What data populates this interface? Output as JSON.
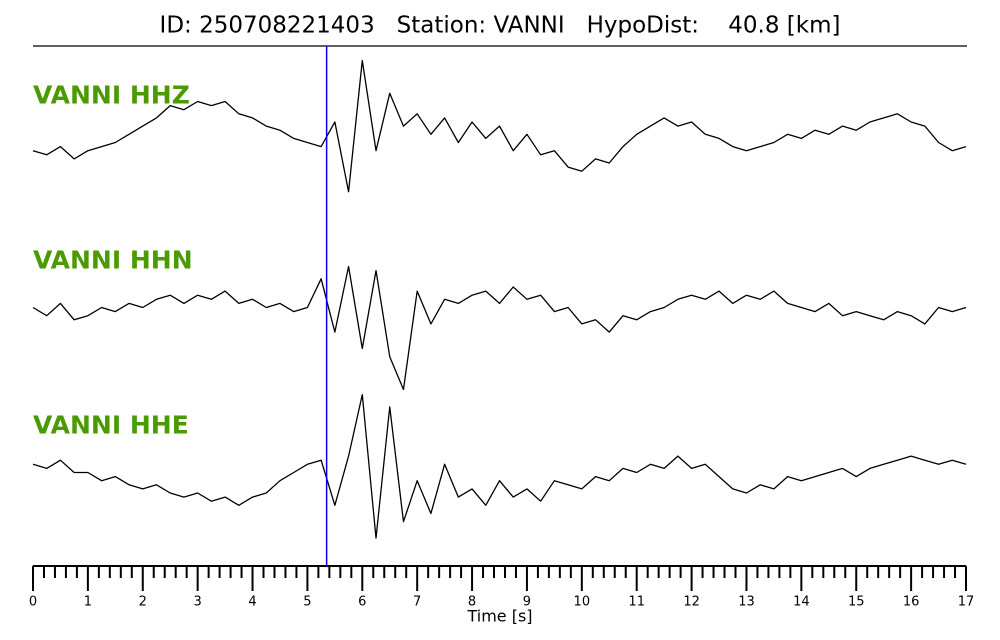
{
  "chart_data": {
    "type": "seismogram",
    "title": "ID: 250708221403   Station: VANNI   HypoDist:    40.8 [km]",
    "xlabel": "Time [s]",
    "xlim": [
      0,
      17
    ],
    "xticks": [
      0,
      1,
      2,
      3,
      4,
      5,
      6,
      7,
      8,
      9,
      10,
      11,
      12,
      13,
      14,
      15,
      16,
      17
    ],
    "xminorticks": [
      0.2,
      0.4,
      0.6,
      0.8,
      1.2,
      1.4,
      1.6,
      1.8,
      2.2,
      2.4,
      2.6,
      2.8,
      3.2,
      3.4,
      3.6,
      3.8,
      4.2,
      4.4,
      4.6,
      4.8,
      5.2,
      5.4,
      5.6,
      5.8,
      6.2,
      6.4,
      6.6,
      6.8,
      7.2,
      7.4,
      7.6,
      7.8,
      8.2,
      8.4,
      8.6,
      8.8,
      9.2,
      9.4,
      9.6,
      9.8,
      10.2,
      10.4,
      10.6,
      10.8,
      11.2,
      11.4,
      11.6,
      11.8,
      12.2,
      12.4,
      12.6,
      12.8,
      13.2,
      13.4,
      13.6,
      13.8,
      14.2,
      14.4,
      14.6,
      14.8,
      15.2,
      15.4,
      15.6,
      15.8,
      16.2,
      16.4,
      16.6,
      16.8
    ],
    "ylim": [
      -1,
      1
    ],
    "pick": {
      "x": 5.35,
      "color": "#0000ff"
    },
    "x": [
      0,
      0.25,
      0.5,
      0.75,
      1,
      1.25,
      1.5,
      1.75,
      2,
      2.25,
      2.5,
      2.75,
      3,
      3.25,
      3.5,
      3.75,
      4,
      4.25,
      4.5,
      4.75,
      5,
      5.25,
      5.5,
      5.75,
      6,
      6.25,
      6.5,
      6.75,
      7,
      7.25,
      7.5,
      7.75,
      8,
      8.25,
      8.5,
      8.75,
      9,
      9.25,
      9.5,
      9.75,
      10,
      10.25,
      10.5,
      10.75,
      11,
      11.25,
      11.5,
      11.75,
      12,
      12.25,
      12.5,
      12.75,
      13,
      13.25,
      13.5,
      13.75,
      14,
      14.25,
      14.5,
      14.75,
      15,
      15.25,
      15.5,
      15.75,
      16,
      16.25,
      16.5,
      16.75,
      17
    ],
    "series": [
      {
        "name": "VANNI HHZ",
        "color": "#000000",
        "label_color": "#4a9a00",
        "values": [
          -0.1,
          -0.15,
          -0.05,
          -0.2,
          -0.1,
          -0.05,
          0.0,
          0.1,
          0.2,
          0.3,
          0.45,
          0.4,
          0.5,
          0.45,
          0.5,
          0.35,
          0.3,
          0.2,
          0.15,
          0.05,
          0.0,
          -0.05,
          0.25,
          -0.6,
          1.0,
          -0.1,
          0.6,
          0.2,
          0.35,
          0.1,
          0.3,
          0.0,
          0.25,
          0.05,
          0.2,
          -0.1,
          0.1,
          -0.15,
          -0.1,
          -0.3,
          -0.35,
          -0.2,
          -0.25,
          -0.05,
          0.1,
          0.2,
          0.3,
          0.2,
          0.25,
          0.1,
          0.05,
          -0.05,
          -0.1,
          -0.05,
          0.0,
          0.1,
          0.05,
          0.15,
          0.1,
          0.2,
          0.15,
          0.25,
          0.3,
          0.35,
          0.25,
          0.2,
          0.0,
          -0.1,
          -0.05
        ]
      },
      {
        "name": "VANNI HHN",
        "color": "#000000",
        "label_color": "#4a9a00",
        "values": [
          0.0,
          -0.1,
          0.05,
          -0.15,
          -0.1,
          0.0,
          -0.05,
          0.05,
          0.0,
          0.1,
          0.15,
          0.05,
          0.15,
          0.1,
          0.2,
          0.05,
          0.1,
          0.0,
          0.05,
          -0.05,
          0.0,
          0.35,
          -0.3,
          0.5,
          -0.5,
          0.45,
          -0.6,
          -1.0,
          0.2,
          -0.2,
          0.1,
          0.05,
          0.15,
          0.2,
          0.05,
          0.25,
          0.1,
          0.15,
          -0.05,
          0.0,
          -0.2,
          -0.15,
          -0.3,
          -0.1,
          -0.15,
          -0.05,
          0.0,
          0.1,
          0.15,
          0.1,
          0.2,
          0.05,
          0.15,
          0.1,
          0.2,
          0.05,
          0.0,
          -0.05,
          0.05,
          -0.1,
          -0.05,
          -0.1,
          -0.15,
          -0.05,
          -0.1,
          -0.2,
          0.0,
          -0.05,
          0.0
        ]
      },
      {
        "name": "VANNI HHE",
        "color": "#000000",
        "label_color": "#4a9a00",
        "values": [
          0.1,
          0.05,
          0.15,
          0.0,
          0.0,
          -0.1,
          -0.05,
          -0.15,
          -0.2,
          -0.15,
          -0.25,
          -0.3,
          -0.25,
          -0.35,
          -0.3,
          -0.4,
          -0.3,
          -0.25,
          -0.1,
          0.0,
          0.1,
          0.15,
          -0.4,
          0.2,
          0.95,
          -0.8,
          0.8,
          -0.6,
          -0.1,
          -0.5,
          0.1,
          -0.3,
          -0.2,
          -0.4,
          -0.1,
          -0.3,
          -0.2,
          -0.35,
          -0.1,
          -0.15,
          -0.2,
          -0.05,
          -0.1,
          0.05,
          0.0,
          0.1,
          0.05,
          0.2,
          0.05,
          0.1,
          -0.05,
          -0.2,
          -0.25,
          -0.15,
          -0.2,
          -0.05,
          -0.1,
          -0.05,
          0.0,
          0.05,
          -0.05,
          0.05,
          0.1,
          0.15,
          0.2,
          0.15,
          0.1,
          0.15,
          0.1
        ]
      }
    ]
  }
}
